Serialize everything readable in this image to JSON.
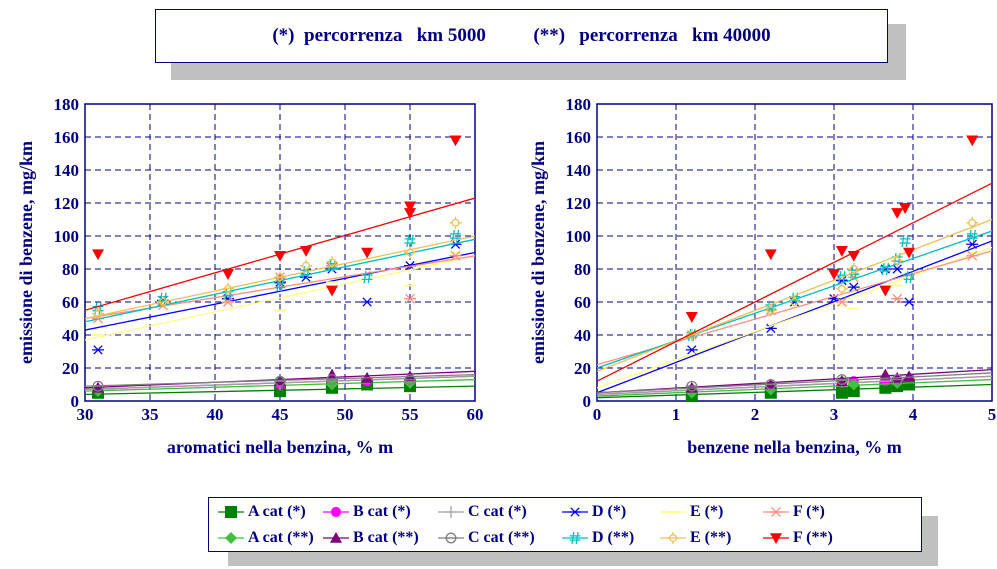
{
  "banner": {
    "text1": "(*)  percorrenza   km 5000",
    "text2": "(**)   percorrenza   km 40000"
  },
  "colors": {
    "axis_text": "#000080",
    "A_star": "#008000",
    "B_star": "#ff00ff",
    "C_star": "#a0a0a0",
    "D_star": "#0000ff",
    "E_star": "#ffff80",
    "F_star": "#ff9080",
    "A_2star": "#40c040",
    "B_2star": "#800080",
    "C_2star": "#808080",
    "D_2star": "#00c0c0",
    "E_2star": "#f0c050",
    "F_2star": "#ff0000"
  },
  "legend": [
    {
      "label": "A cat (*)",
      "icon": "square-marker",
      "color": "#008000"
    },
    {
      "label": "B cat (*)",
      "icon": "circle-marker",
      "color": "#ff00ff"
    },
    {
      "label": "C cat (*)",
      "icon": "plus-marker",
      "color": "#a0a0a0"
    },
    {
      "label": "D (*)",
      "icon": "asterisk-marker",
      "color": "#0000ff"
    },
    {
      "label": "E (*)",
      "icon": "line-marker",
      "color": "#ffff80"
    },
    {
      "label": "F (*)",
      "icon": "x-star-marker",
      "color": "#ff9080"
    },
    {
      "label": "A cat (**)",
      "icon": "diamond-marker",
      "color": "#40c040"
    },
    {
      "label": "B cat (**)",
      "icon": "triangle-marker",
      "color": "#800080"
    },
    {
      "label": "C cat (**)",
      "icon": "circle-line-marker",
      "color": "#808080"
    },
    {
      "label": "D (**)",
      "icon": "hash-marker",
      "color": "#00c0c0"
    },
    {
      "label": "E (**)",
      "icon": "sun-marker",
      "color": "#f0c050"
    },
    {
      "label": "F (**)",
      "icon": "down-triangle-marker",
      "color": "#ff0000"
    }
  ],
  "chart_data": [
    {
      "type": "scatter",
      "xlabel": "aromatici nella benzina, % m",
      "ylabel": "emissione di benzene, mg/km",
      "xlim": [
        30,
        60
      ],
      "ylim": [
        0,
        180
      ],
      "xticks": [
        30,
        35,
        40,
        45,
        50,
        55,
        60
      ],
      "yticks": [
        0,
        20,
        40,
        60,
        80,
        100,
        120,
        140,
        160,
        180
      ],
      "grid": true,
      "series": [
        {
          "name": "A cat (*)",
          "points": [
            [
              31,
              5
            ],
            [
              45,
              6
            ],
            [
              49,
              8
            ],
            [
              51.7,
              10
            ],
            [
              55,
              9
            ]
          ],
          "fit": [
            [
              30,
              4
            ],
            [
              60,
              9
            ]
          ]
        },
        {
          "name": "B cat (*)",
          "points": [
            [
              31,
              7
            ],
            [
              45,
              10
            ],
            [
              49,
              12
            ],
            [
              51.7,
              12
            ],
            [
              55,
              12
            ]
          ],
          "fit": [
            [
              30,
              7
            ],
            [
              60,
              15
            ]
          ]
        },
        {
          "name": "C cat (*)",
          "points": [
            [
              31,
              7
            ],
            [
              45,
              10
            ],
            [
              49,
              12
            ],
            [
              55,
              13
            ]
          ],
          "fit": [
            [
              30,
              7
            ],
            [
              60,
              15
            ]
          ]
        },
        {
          "name": "D (*)",
          "points": [
            [
              31,
              31
            ],
            [
              36,
              61
            ],
            [
              41,
              62
            ],
            [
              45,
              72
            ],
            [
              47,
              75
            ],
            [
              49,
              80
            ],
            [
              51.7,
              60
            ],
            [
              55,
              82
            ],
            [
              58.5,
              95
            ]
          ],
          "fit": [
            [
              30,
              43
            ],
            [
              60,
              90
            ]
          ]
        },
        {
          "name": "E (*)",
          "points": [
            [
              31,
              40
            ],
            [
              41,
              60
            ],
            [
              45,
              55
            ],
            [
              49,
              72
            ],
            [
              55,
              70
            ],
            [
              58.5,
              90
            ]
          ],
          "fit": [
            [
              30,
              37
            ],
            [
              60,
              88
            ]
          ]
        },
        {
          "name": "F (*)",
          "points": [
            [
              31,
              50
            ],
            [
              36,
              58
            ],
            [
              41,
              60
            ],
            [
              45,
              75
            ],
            [
              49,
              82
            ],
            [
              55,
              62
            ],
            [
              58.5,
              88
            ]
          ],
          "fit": [
            [
              30,
              50
            ],
            [
              60,
              88
            ]
          ]
        },
        {
          "name": "A cat (**)",
          "points": [
            [
              31,
              6
            ],
            [
              45,
              12
            ],
            [
              49,
              10
            ],
            [
              55,
              11
            ]
          ],
          "fit": [
            [
              30,
              6
            ],
            [
              60,
              13
            ]
          ]
        },
        {
          "name": "B cat (**)",
          "points": [
            [
              31,
              8
            ],
            [
              45,
              12
            ],
            [
              49,
              16
            ],
            [
              51.7,
              14
            ],
            [
              55,
              15
            ]
          ],
          "fit": [
            [
              30,
              8
            ],
            [
              60,
              18
            ]
          ]
        },
        {
          "name": "C cat (**)",
          "points": [
            [
              31,
              9
            ],
            [
              45,
              12
            ],
            [
              49,
              13
            ],
            [
              55,
              13
            ]
          ],
          "fit": [
            [
              30,
              9
            ],
            [
              60,
              16
            ]
          ]
        },
        {
          "name": "D (**)",
          "points": [
            [
              31,
              56
            ],
            [
              36,
              62
            ],
            [
              41,
              65
            ],
            [
              45,
              70
            ],
            [
              47,
              78
            ],
            [
              49,
              82
            ],
            [
              51.7,
              75
            ],
            [
              55,
              97
            ],
            [
              58.5,
              100
            ]
          ],
          "fit": [
            [
              30,
              48
            ],
            [
              60,
              98
            ]
          ]
        },
        {
          "name": "E (**)",
          "points": [
            [
              31,
              53
            ],
            [
              36,
              60
            ],
            [
              41,
              68
            ],
            [
              45,
              75
            ],
            [
              47,
              82
            ],
            [
              49,
              84
            ],
            [
              55,
              90
            ],
            [
              58.5,
              108
            ]
          ],
          "fit": [
            [
              30,
              50
            ],
            [
              60,
              100
            ]
          ]
        },
        {
          "name": "F (**)",
          "points": [
            [
              31,
              89
            ],
            [
              41,
              77
            ],
            [
              45,
              88
            ],
            [
              47,
              91
            ],
            [
              49,
              67
            ],
            [
              51.7,
              90
            ],
            [
              55,
              118
            ],
            [
              55,
              114
            ],
            [
              58.5,
              158
            ]
          ],
          "fit": [
            [
              30,
              55
            ],
            [
              60,
              123
            ]
          ]
        }
      ]
    },
    {
      "type": "scatter",
      "xlabel": "benzene nella benzina, % m",
      "ylabel": "emissione di benzene, mg/km",
      "xlim": [
        0,
        5
      ],
      "ylim": [
        0,
        180
      ],
      "xticks": [
        0,
        1,
        2,
        3,
        4,
        5
      ],
      "yticks": [
        0,
        20,
        40,
        60,
        80,
        100,
        120,
        140,
        160,
        180
      ],
      "grid": true,
      "series": [
        {
          "name": "A cat (*)",
          "points": [
            [
              1.2,
              3
            ],
            [
              2.2,
              5
            ],
            [
              3.1,
              5
            ],
            [
              3.25,
              6
            ],
            [
              3.65,
              8
            ],
            [
              3.8,
              9
            ],
            [
              3.95,
              10
            ]
          ],
          "fit": [
            [
              0,
              2
            ],
            [
              5,
              10
            ]
          ]
        },
        {
          "name": "B cat (*)",
          "points": [
            [
              1.2,
              7
            ],
            [
              2.2,
              9
            ],
            [
              3.1,
              11
            ],
            [
              3.25,
              12
            ],
            [
              3.65,
              12
            ],
            [
              3.8,
              12
            ]
          ],
          "fit": [
            [
              0,
              4
            ],
            [
              5,
              15
            ]
          ]
        },
        {
          "name": "C cat (*)",
          "points": [
            [
              1.2,
              7
            ],
            [
              2.2,
              9
            ],
            [
              3.1,
              12
            ],
            [
              3.8,
              13
            ]
          ],
          "fit": [
            [
              0,
              4
            ],
            [
              5,
              15
            ]
          ]
        },
        {
          "name": "D (*)",
          "points": [
            [
              1.2,
              31
            ],
            [
              2.2,
              44
            ],
            [
              2.5,
              60
            ],
            [
              3.0,
              62
            ],
            [
              3.1,
              73
            ],
            [
              3.25,
              69
            ],
            [
              3.65,
              80
            ],
            [
              3.8,
              80
            ],
            [
              3.95,
              60
            ],
            [
              4.75,
              95
            ]
          ],
          "fit": [
            [
              0,
              5
            ],
            [
              5,
              97
            ]
          ]
        },
        {
          "name": "E (*)",
          "points": [
            [
              1.2,
              40
            ],
            [
              2.2,
              55
            ],
            [
              3.1,
              58
            ],
            [
              3.25,
              56
            ],
            [
              3.8,
              70
            ],
            [
              4.75,
              90
            ]
          ],
          "fit": [
            [
              0,
              8
            ],
            [
              5,
              93
            ]
          ]
        },
        {
          "name": "F (*)",
          "points": [
            [
              1.2,
              40
            ],
            [
              2.2,
              55
            ],
            [
              3.1,
              60
            ],
            [
              3.25,
              75
            ],
            [
              3.8,
              62
            ],
            [
              4.75,
              88
            ]
          ],
          "fit": [
            [
              0,
              22
            ],
            [
              5,
              91
            ]
          ]
        },
        {
          "name": "A cat (**)",
          "points": [
            [
              1.2,
              5
            ],
            [
              2.2,
              7
            ],
            [
              3.1,
              12
            ],
            [
              3.25,
              10
            ],
            [
              3.8,
              11
            ]
          ],
          "fit": [
            [
              0,
              3
            ],
            [
              5,
              13
            ]
          ]
        },
        {
          "name": "B cat (**)",
          "points": [
            [
              1.2,
              8
            ],
            [
              2.2,
              10
            ],
            [
              3.1,
              12
            ],
            [
              3.65,
              16
            ],
            [
              3.8,
              14
            ],
            [
              3.95,
              15
            ]
          ],
          "fit": [
            [
              0,
              5
            ],
            [
              5,
              19
            ]
          ]
        },
        {
          "name": "C cat (**)",
          "points": [
            [
              1.2,
              9
            ],
            [
              2.2,
              10
            ],
            [
              3.1,
              13
            ],
            [
              3.8,
              13
            ]
          ],
          "fit": [
            [
              0,
              5
            ],
            [
              5,
              17
            ]
          ]
        },
        {
          "name": "D (**)",
          "points": [
            [
              1.2,
              40
            ],
            [
              2.2,
              57
            ],
            [
              2.5,
              62
            ],
            [
              3.1,
              75
            ],
            [
              3.25,
              78
            ],
            [
              3.65,
              80
            ],
            [
              3.8,
              86
            ],
            [
              3.9,
              97
            ],
            [
              3.95,
              75
            ],
            [
              4.75,
              100
            ]
          ],
          "fit": [
            [
              0,
              20
            ],
            [
              5,
              103
            ]
          ]
        },
        {
          "name": "E (**)",
          "points": [
            [
              1.2,
              40
            ],
            [
              2.2,
              55
            ],
            [
              2.5,
              60
            ],
            [
              3.1,
              68
            ],
            [
              3.25,
              80
            ],
            [
              3.8,
              85
            ],
            [
              4.75,
              108
            ]
          ],
          "fit": [
            [
              0,
              18
            ],
            [
              5,
              110
            ]
          ]
        },
        {
          "name": "F (**)",
          "points": [
            [
              1.2,
              51
            ],
            [
              2.2,
              89
            ],
            [
              3.0,
              77
            ],
            [
              3.1,
              91
            ],
            [
              3.25,
              88
            ],
            [
              3.65,
              67
            ],
            [
              3.8,
              114
            ],
            [
              3.9,
              117
            ],
            [
              3.95,
              90
            ],
            [
              4.75,
              158
            ]
          ],
          "fit": [
            [
              0,
              12
            ],
            [
              5,
              132
            ]
          ]
        }
      ]
    }
  ]
}
